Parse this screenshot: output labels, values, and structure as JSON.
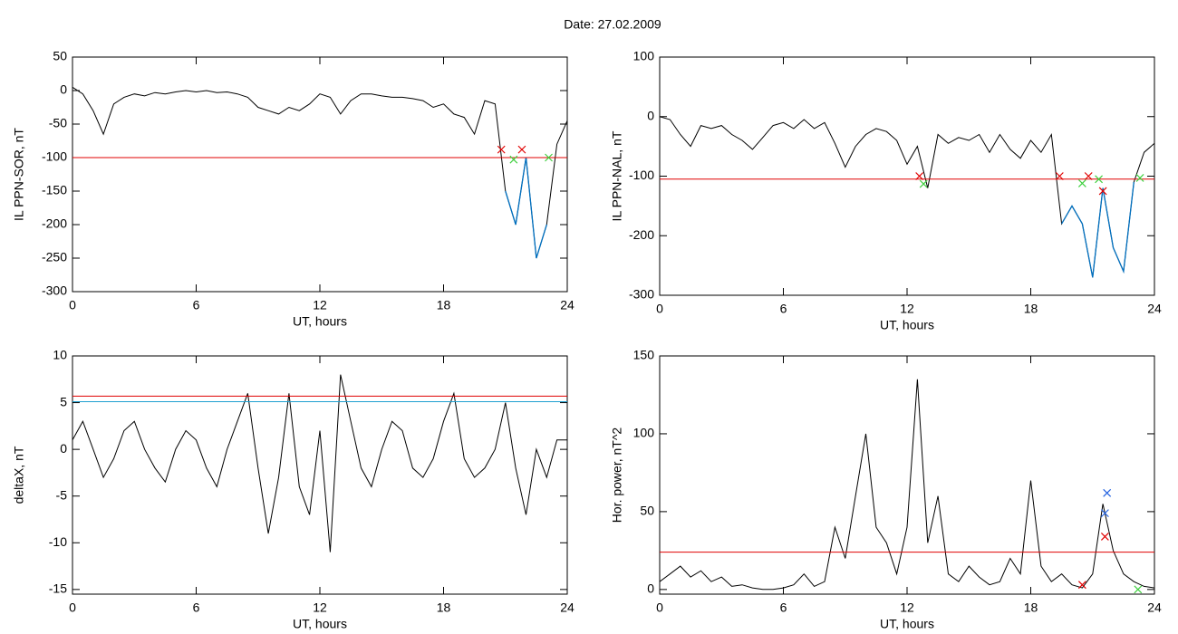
{
  "title": "Date:  27.02.2009",
  "chart_data": [
    {
      "type": "line",
      "ylabel": "IL PPN-SOR, nT",
      "xlabel": "UT, hours",
      "xlim": [
        0,
        24
      ],
      "xticks": [
        0,
        6,
        12,
        18,
        24
      ],
      "ylim": [
        -300,
        50
      ],
      "yticks": [
        50,
        0,
        -50,
        -100,
        -150,
        -200,
        -250,
        -300
      ],
      "x": [
        0,
        0.5,
        1,
        1.5,
        2,
        2.5,
        3,
        3.5,
        4,
        4.5,
        5,
        5.5,
        6,
        6.5,
        7,
        7.5,
        8,
        8.5,
        9,
        9.5,
        10,
        10.5,
        11,
        11.5,
        12,
        12.5,
        13,
        13.5,
        14,
        14.5,
        15,
        15.5,
        16,
        16.5,
        17,
        17.5,
        18,
        18.5,
        19,
        19.5,
        20,
        20.5,
        21,
        21.5,
        22,
        22.5,
        23,
        23.5,
        24
      ],
      "series": [
        {
          "color": "#000000",
          "values": [
            5,
            -5,
            -30,
            -65,
            -20,
            -10,
            -5,
            -8,
            -3,
            -5,
            -2,
            0,
            -2,
            0,
            -3,
            -2,
            -5,
            -10,
            -25,
            -30,
            -35,
            -25,
            -30,
            -20,
            -5,
            -10,
            -35,
            -15,
            -5,
            -5,
            -8,
            -10,
            -10,
            -12,
            -15,
            -25,
            -20,
            -35,
            -40,
            -65,
            -15,
            -20,
            -150,
            -200,
            -100,
            -250,
            -200,
            -80,
            -45
          ]
        }
      ],
      "highlight": {
        "xlim": [
          20.8,
          23.1
        ],
        "color": "#0070c0"
      },
      "hlines": [
        {
          "value": -100,
          "color": "#e00000"
        }
      ],
      "markers": [
        {
          "color": "#e00000",
          "x": [
            20.8,
            21.8
          ],
          "y": [
            -88,
            -88
          ]
        },
        {
          "color": "#40d040",
          "x": [
            21.4,
            23.1
          ],
          "y": [
            -103,
            -100
          ]
        }
      ]
    },
    {
      "type": "line",
      "ylabel": "IL PPN-NAL, nT",
      "xlabel": "UT, hours",
      "xlim": [
        0,
        24
      ],
      "xticks": [
        0,
        6,
        12,
        18,
        24
      ],
      "ylim": [
        -300,
        100
      ],
      "yticks": [
        100,
        0,
        -100,
        -200,
        -300
      ],
      "x": [
        0,
        0.5,
        1,
        1.5,
        2,
        2.5,
        3,
        3.5,
        4,
        4.5,
        5,
        5.5,
        6,
        6.5,
        7,
        7.5,
        8,
        8.5,
        9,
        9.5,
        10,
        10.5,
        11,
        11.5,
        12,
        12.5,
        13,
        13.5,
        14,
        14.5,
        15,
        15.5,
        16,
        16.5,
        17,
        17.5,
        18,
        18.5,
        19,
        19.5,
        20,
        20.5,
        21,
        21.5,
        22,
        22.5,
        23,
        23.5,
        24
      ],
      "series": [
        {
          "color": "#000000",
          "values": [
            0,
            -5,
            -30,
            -50,
            -15,
            -20,
            -15,
            -30,
            -40,
            -55,
            -35,
            -15,
            -10,
            -20,
            -5,
            -20,
            -10,
            -45,
            -85,
            -50,
            -30,
            -20,
            -25,
            -40,
            -80,
            -50,
            -120,
            -30,
            -45,
            -35,
            -40,
            -30,
            -60,
            -30,
            -55,
            -70,
            -40,
            -60,
            -30,
            -180,
            -150,
            -180,
            -270,
            -120,
            -220,
            -260,
            -110,
            -60,
            -45
          ]
        }
      ],
      "highlight": {
        "xlim": [
          19.4,
          23.3
        ],
        "color": "#0070c0"
      },
      "hlines": [
        {
          "value": -105,
          "color": "#e00000"
        }
      ],
      "markers": [
        {
          "color": "#e00000",
          "x": [
            12.6,
            19.4,
            20.8,
            21.5
          ],
          "y": [
            -100,
            -100,
            -100,
            -125
          ]
        },
        {
          "color": "#40d040",
          "x": [
            12.8,
            20.5,
            21.3,
            23.3
          ],
          "y": [
            -113,
            -112,
            -105,
            -103
          ]
        }
      ]
    },
    {
      "type": "line",
      "ylabel": "deltaX, nT",
      "xlabel": "UT, hours",
      "xlim": [
        0,
        24
      ],
      "xticks": [
        0,
        6,
        12,
        18,
        24
      ],
      "ylim": [
        -15.5,
        10
      ],
      "yticks": [
        10,
        5,
        0,
        -5,
        -10,
        -15
      ],
      "x": [
        0,
        0.5,
        1,
        1.5,
        2,
        2.5,
        3,
        3.5,
        4,
        4.5,
        5,
        5.5,
        6,
        6.5,
        7,
        7.5,
        8,
        8.5,
        9,
        9.5,
        10,
        10.5,
        11,
        11.5,
        12,
        12.5,
        13,
        13.5,
        14,
        14.5,
        15,
        15.5,
        16,
        16.5,
        17,
        17.5,
        18,
        18.5,
        19,
        19.5,
        20,
        20.5,
        21,
        21.5,
        22,
        22.5,
        23,
        23.5,
        24
      ],
      "series": [
        {
          "color": "#000000",
          "values": [
            1,
            3,
            0,
            -3,
            -1,
            2,
            3,
            0,
            -2,
            -3.5,
            0,
            2,
            1,
            -2,
            -4,
            0,
            3,
            6,
            -2,
            -9,
            -3,
            6,
            -4,
            -7,
            2,
            -11,
            8,
            3,
            -2,
            -4,
            0,
            3,
            2,
            -2,
            -3,
            -1,
            3,
            6,
            -1,
            -3,
            -2,
            0,
            5,
            -2,
            -7,
            0,
            -3,
            1,
            1
          ]
        }
      ],
      "hlines": [
        {
          "value": 5.7,
          "color": "#e00000"
        },
        {
          "value": 5.1,
          "color": "#20a0d0"
        }
      ],
      "markers": []
    },
    {
      "type": "line",
      "ylabel": "Hor. power, nT^2",
      "xlabel": "UT, hours",
      "xlim": [
        0,
        24
      ],
      "xticks": [
        0,
        6,
        12,
        18,
        24
      ],
      "ylim": [
        -3,
        150
      ],
      "yticks": [
        150,
        100,
        50,
        0
      ],
      "x": [
        0,
        0.5,
        1,
        1.5,
        2,
        2.5,
        3,
        3.5,
        4,
        4.5,
        5,
        5.5,
        6,
        6.5,
        7,
        7.5,
        8,
        8.5,
        9,
        9.5,
        10,
        10.5,
        11,
        11.5,
        12,
        12.5,
        13,
        13.5,
        14,
        14.5,
        15,
        15.5,
        16,
        16.5,
        17,
        17.5,
        18,
        18.5,
        19,
        19.5,
        20,
        20.5,
        21,
        21.5,
        22,
        22.5,
        23,
        23.5,
        24
      ],
      "series": [
        {
          "color": "#000000",
          "values": [
            5,
            10,
            15,
            8,
            12,
            5,
            8,
            2,
            3,
            1,
            0,
            0,
            1,
            3,
            10,
            2,
            5,
            40,
            20,
            60,
            100,
            40,
            30,
            10,
            40,
            135,
            30,
            60,
            10,
            5,
            15,
            8,
            3,
            5,
            20,
            10,
            70,
            15,
            5,
            10,
            3,
            1,
            10,
            55,
            25,
            10,
            5,
            2,
            1
          ]
        }
      ],
      "hlines": [
        {
          "value": 24,
          "color": "#e00000"
        }
      ],
      "markers": [
        {
          "color": "#e00000",
          "x": [
            20.5,
            21.6
          ],
          "y": [
            3,
            34
          ]
        },
        {
          "color": "#2060e0",
          "x": [
            21.7,
            21.6
          ],
          "y": [
            62,
            49
          ]
        },
        {
          "color": "#40d040",
          "x": [
            23.2
          ],
          "y": [
            0
          ]
        }
      ]
    }
  ]
}
